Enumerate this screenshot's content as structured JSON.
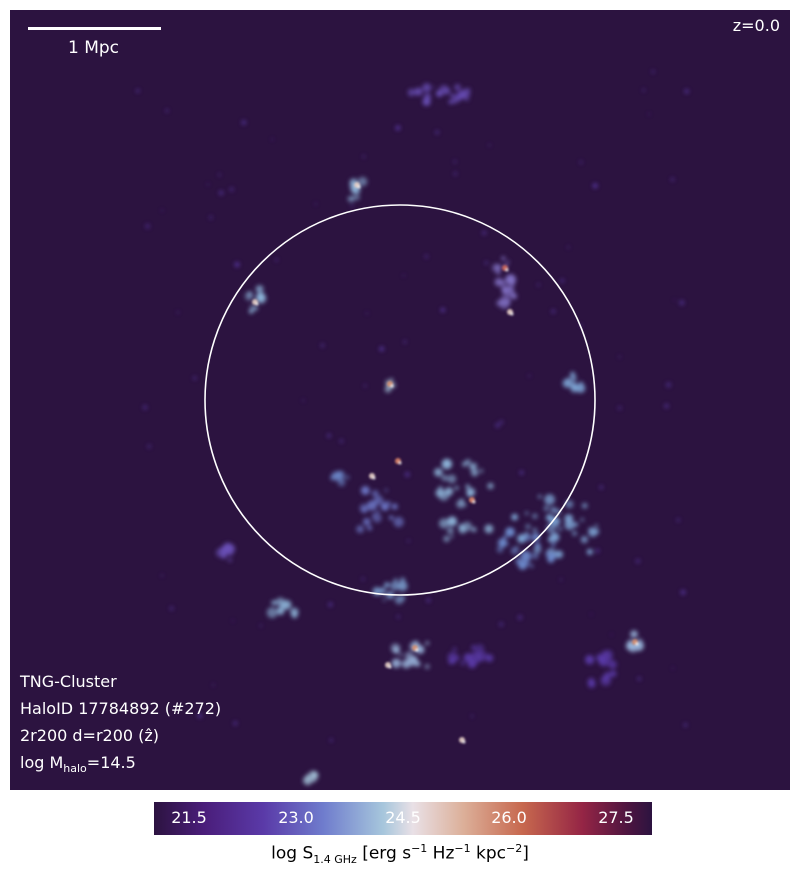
{
  "header": {
    "redshift": "z=0.0"
  },
  "scale": {
    "label": "1 Mpc"
  },
  "info": {
    "simulation": "TNG-Cluster",
    "halo_id": "HaloID 17784892 (#272)",
    "projection": "2r200 d=r200 (ẑ)",
    "mass_prefix": "log M",
    "mass_sub": "halo",
    "mass_suffix": "=14.5"
  },
  "colorbar": {
    "ticks": [
      "21.5",
      "23.0",
      "24.5",
      "26.0",
      "27.5"
    ],
    "label_prefix": "log S",
    "label_sub": "1.4 GHz",
    "label_unit_open": " [erg s",
    "label_exp1": "−1",
    "label_mid": " Hz",
    "label_exp2": "−1",
    "label_mid2": " kpc",
    "label_exp3": "−2",
    "label_close": "]"
  },
  "colors": {
    "background": "#2c1340",
    "circle": "#ffffff"
  }
}
